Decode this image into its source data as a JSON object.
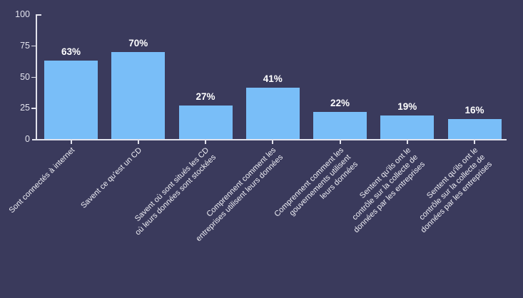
{
  "chart_data": {
    "type": "bar",
    "title": "",
    "xlabel": "",
    "ylabel": "",
    "ylim": [
      0,
      100
    ],
    "yticks": [
      0,
      25,
      50,
      75,
      100
    ],
    "grid": false,
    "legend": false,
    "bar_color": "#79BEF8",
    "background_color": "#3A3A5C",
    "axis_color": "#E2E2EC",
    "category_label_color": "#EFEFF5",
    "value_label_color": "#FFFFFF",
    "categories": [
      [
        "Sont connectés à internet"
      ],
      [
        "Savent ce qu'est un CD"
      ],
      [
        "Savent où sont situés les CD",
        "où leurs données sont stockées"
      ],
      [
        "Comprennent comment les",
        "entreprises utilisent leurs données"
      ],
      [
        "Comprennent comment les",
        "gouvernements utilisent",
        "leurs données"
      ],
      [
        "Sentent qu'ils ont le",
        "contrôle sur la collecte de",
        "données par les entreprises"
      ],
      [
        "Sentent qu'ils ont le",
        "contrôle sur la collecte de",
        "données par les entreprises"
      ]
    ],
    "values": [
      63,
      70,
      27,
      41,
      22,
      19,
      16
    ],
    "value_labels": [
      "63%",
      "70%",
      "27%",
      "41%",
      "22%",
      "19%",
      "16%"
    ]
  }
}
